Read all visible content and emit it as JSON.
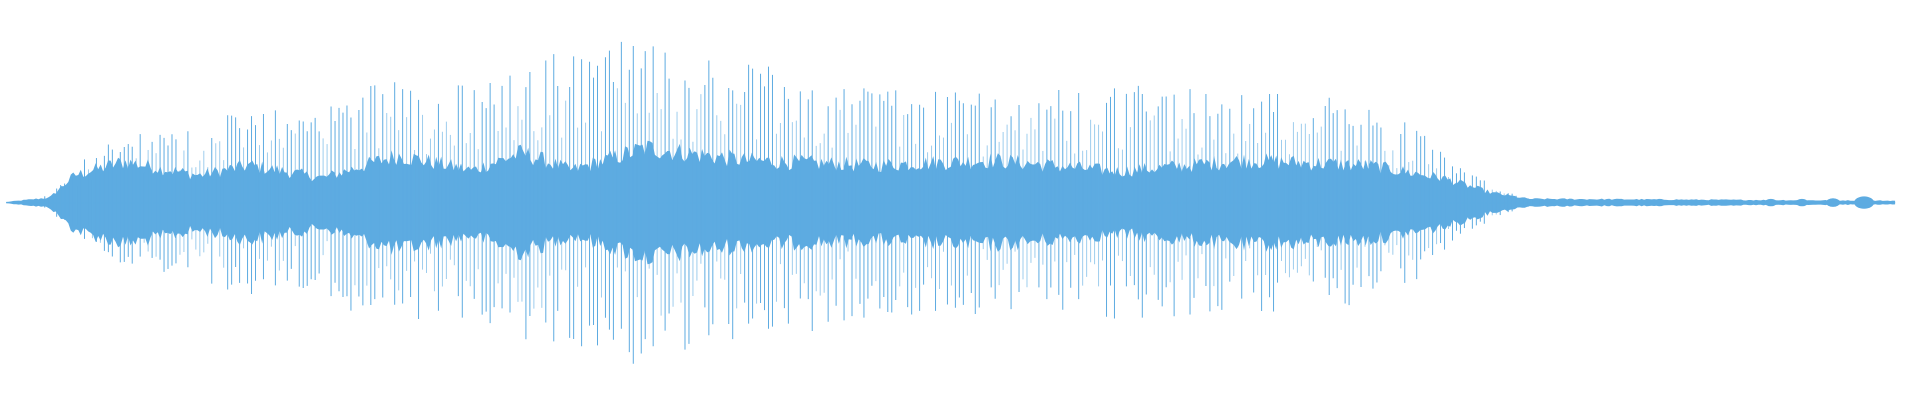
{
  "waveform": {
    "color": "#5dabe1"
  }
}
